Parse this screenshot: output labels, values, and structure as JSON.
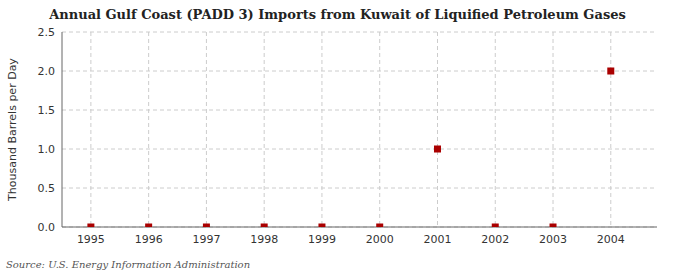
{
  "chart_data": {
    "type": "scatter",
    "title": "Annual Gulf Coast (PADD 3) Imports from Kuwait of Liquified Petroleum Gases",
    "ylabel": "Thousand Barrels per Day",
    "source": "Source: U.S. Energy Information Administration",
    "x": [
      1995,
      1996,
      1997,
      1998,
      1999,
      2000,
      2001,
      2002,
      2003,
      2004
    ],
    "values": [
      0.0,
      0.0,
      0.0,
      0.0,
      0.0,
      0.0,
      1.0,
      0.0,
      0.0,
      2.0
    ],
    "color": "#aa0000",
    "marker": "square",
    "xlim": [
      1994.5,
      2004.8
    ],
    "ylim": [
      0,
      2.5
    ],
    "xticks": [
      1995,
      1996,
      1997,
      1998,
      1999,
      2000,
      2001,
      2002,
      2003,
      2004
    ],
    "yticks": [
      {
        "value": 0.0,
        "label": "0.0"
      },
      0.5,
      {
        "value": 1.0,
        "label": "1.0"
      },
      1.5,
      {
        "value": 2.0,
        "label": "2.0"
      },
      2.5
    ],
    "grid": true
  }
}
